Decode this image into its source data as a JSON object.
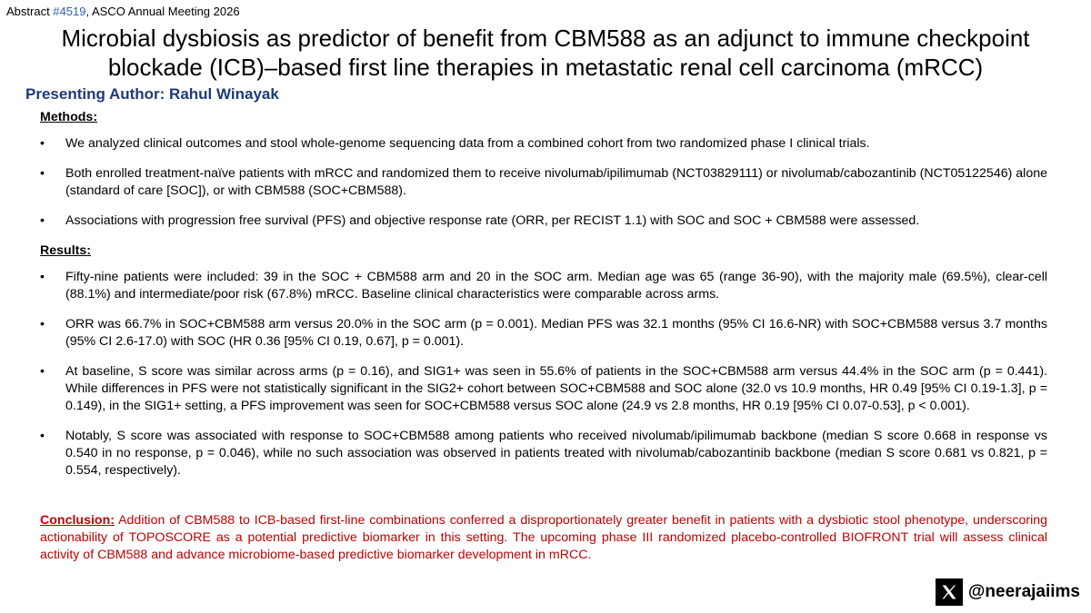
{
  "header": {
    "abstract_prefix": "Abstract ",
    "abstract_number": "#4519",
    "abstract_suffix": ", ASCO Annual Meeting 2026"
  },
  "title": {
    "line1": "Microbial dysbiosis as predictor of benefit from CBM588 as an adjunct to immune checkpoint",
    "line2": "blockade (ICB)–based first line therapies in metastatic renal cell carcinoma (mRCC)"
  },
  "author": "Presenting Author: Rahul Winayak",
  "methods": {
    "heading": "Methods:",
    "bullets": [
      "We analyzed clinical outcomes and stool whole-genome sequencing data from a combined cohort from two randomized phase I clinical trials.",
      "Both enrolled treatment-naïve patients with mRCC and randomized them to receive nivolumab/ipilimumab (NCT03829111) or nivolumab/cabozantinib (NCT05122546) alone (standard of care [SOC]), or with CBM588 (SOC+CBM588).",
      "Associations with progression free survival (PFS) and objective response rate (ORR, per RECIST 1.1) with SOC and SOC + CBM588 were assessed."
    ]
  },
  "results": {
    "heading": "Results:",
    "bullets": [
      "Fifty-nine patients were included: 39 in the SOC + CBM588 arm and 20 in the SOC arm. Median age was 65 (range 36-90), with the majority male (69.5%), clear-cell (88.1%) and intermediate/poor risk (67.8%) mRCC. Baseline clinical characteristics were comparable across arms.",
      "ORR was 66.7% in SOC+CBM588 arm versus 20.0% in the SOC arm (p = 0.001). Median PFS was 32.1 months (95% CI 16.6-NR) with SOC+CBM588 versus 3.7 months (95% CI 2.6-17.0) with SOC (HR 0.36 [95% CI 0.19, 0.67], p = 0.001).",
      "At baseline, S score was similar across arms (p = 0.16), and SIG1+ was seen in 55.6% of patients in the SOC+CBM588 arm versus 44.4% in the SOC arm (p = 0.441). While differences in PFS were not statistically significant in the SIG2+ cohort between SOC+CBM588 and SOC alone (32.0 vs 10.9 months, HR 0.49 [95% CI 0.19-1.3], p = 0.149), in the SIG1+ setting, a PFS improvement was seen for SOC+CBM588 versus SOC alone (24.9 vs 2.8 months, HR 0.19 [95% CI 0.07-0.53], p < 0.001).",
      "Notably, S score was associated with response to SOC+CBM588 among patients who received nivolumab/ipilimumab backbone (median S score 0.668 in response vs 0.540 in no response, p = 0.046), while no such association was observed in patients treated with nivolumab/cabozantinib backbone (median S score 0.681 vs 0.821, p = 0.554, respectively)."
    ]
  },
  "conclusion": {
    "label": "Conclusion:",
    "text": " Addition of CBM588 to ICB-based first-line combinations conferred a disproportionately greater benefit in patients with a dysbiotic stool phenotype, underscoring actionability of TOPOSCORE as a potential predictive biomarker in this setting. The upcoming phase III randomized placebo-controlled BIOFRONT trial will assess clinical activity of CBM588 and advance microbiome-based predictive biomarker development in mRCC."
  },
  "footer": {
    "handle": "@neerajaiims",
    "icon": "x-logo-icon"
  }
}
